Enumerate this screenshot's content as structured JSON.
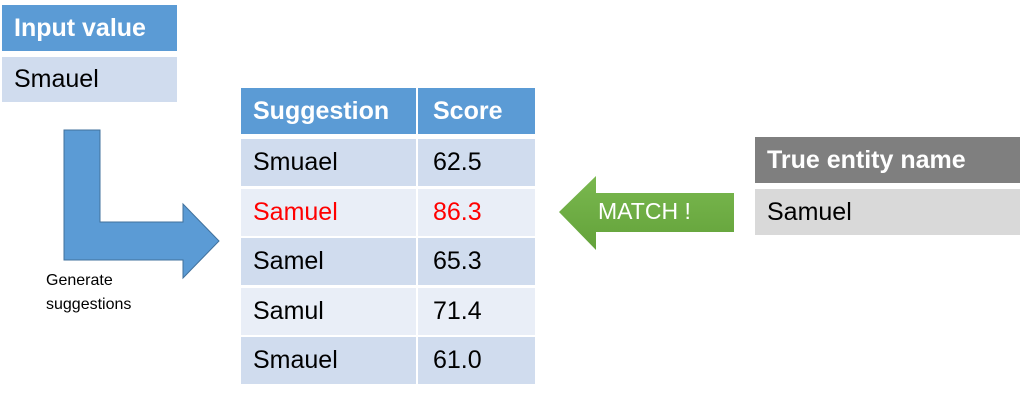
{
  "input": {
    "header": "Input value",
    "value": "Smauel"
  },
  "arrow_label": {
    "line1": "Generate",
    "line2": "suggestions"
  },
  "table": {
    "headers": [
      "Suggestion",
      "Score"
    ],
    "rows": [
      {
        "suggestion": "Smuael",
        "score": "62.5",
        "highlight": false
      },
      {
        "suggestion": "Samuel",
        "score": "86.3",
        "highlight": true
      },
      {
        "suggestion": "Samel",
        "score": "65.3",
        "highlight": false
      },
      {
        "suggestion": "Samul",
        "score": "71.4",
        "highlight": false
      },
      {
        "suggestion": "Smauel",
        "score": "61.0",
        "highlight": false
      }
    ]
  },
  "match_arrow": {
    "label": "MATCH !"
  },
  "true_entity": {
    "header": "True entity name",
    "value": "Samuel"
  },
  "colors": {
    "blue_header": "#5b9bd5",
    "blue_arrow": "#5b9bd5",
    "green_arrow": "#70ad47",
    "highlight_text": "#ff0000",
    "gray_header": "#7f7f7f"
  }
}
